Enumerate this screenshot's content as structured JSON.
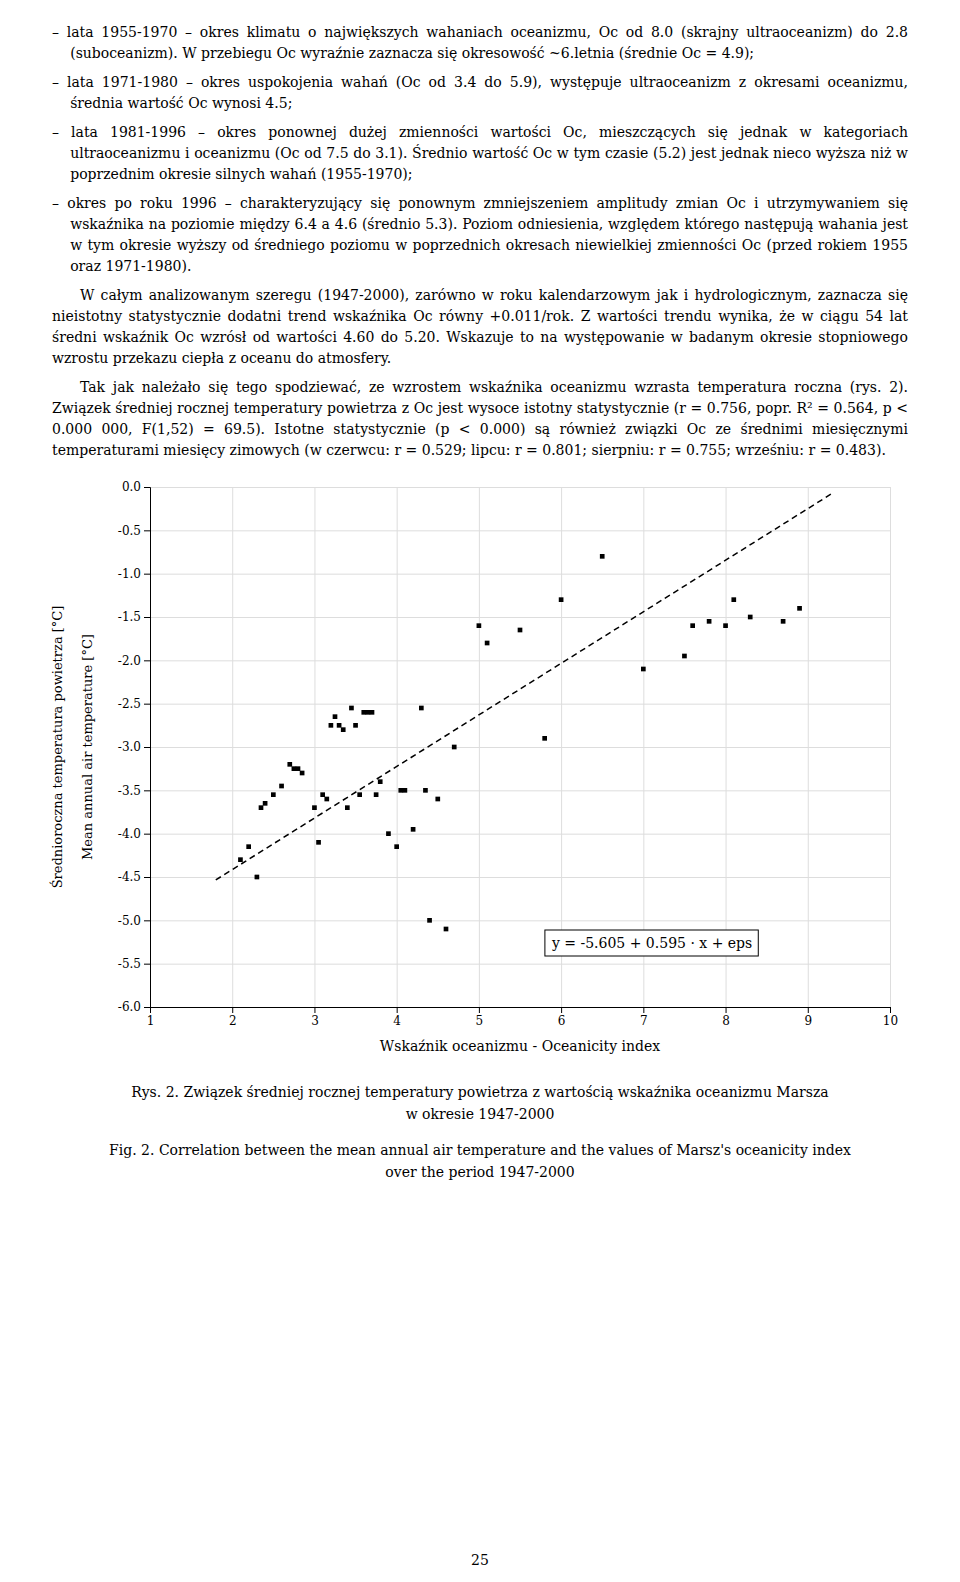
{
  "paragraphs": [
    "– lata 1955-1970 – okres klimatu o największych wahaniach oceanizmu, Oc od 8.0 (skrajny ultraoceanizm) do 2.8 (suboceanizm). W przebiegu Oc wyraźnie zaznacza się okresowość ~6.letnia (średnie Oc = 4.9);",
    "– lata 1971-1980 – okres uspokojenia wahań (Oc od 3.4 do 5.9), występuje ultraoceanizm z okresami oceanizmu, średnia wartość Oc wynosi 4.5;",
    "– lata 1981-1996 – okres ponownej dużej zmienności wartości Oc, mieszczących się jednak w kategoriach ultraoceanizmu i oceanizmu (Oc od 7.5 do 3.1). Średnio wartość Oc w tym czasie (5.2) jest jednak nieco wyższa niż w poprzednim okresie silnych wahań (1955-1970);",
    "– okres po roku 1996 – charakteryzujący się ponownym zmniejszeniem amplitudy zmian Oc i utrzymywaniem się wskaźnika na poziomie między 6.4 a 4.6 (średnio 5.3). Poziom odniesienia, względem którego następują wahania jest  w tym okresie wyższy od średniego poziomu w poprzednich okresach niewielkiej zmienności Oc (przed rokiem 1955 oraz 1971-1980).",
    "   W całym analizowanym szeregu (1947-2000), zarówno w roku kalendarzowym jak i hydrologicznym, zaznacza się nieistotny statystycznie dodatni trend wskaźnika Oc równy +0.011/rok. Z wartości trendu wynika, że w ciągu 54 lat średni wskaźnik Oc wzrósł od wartości 4.60 do 5.20. Wskazuje to na występowanie w badanym okresie stopniowego wzrostu przekazu ciepła z oceanu do atmosfery.",
    "   Tak jak należało się tego spodziewać, ze wzrostem wskaźnika oceanizmu wzrasta temperatura roczna (rys. 2). Związek średniej rocznej temperatury powietrza z Oc jest wysoce istotny statystycznie (r = 0.756, popr. R² = 0.564, p < 0.000 000, F(1,52) = 69.5). Istotne statystycznie (p < 0.000) są również związki Oc ze średnimi miesięcznymi temperaturami miesięcy zimowych (w czerwcu: r = 0.529; lipcu: r = 0.801; sierpniu: r = 0.755; wrześniu: r = 0.483)."
  ],
  "page_number": "25",
  "chart_data": {
    "type": "scatter",
    "caption": [
      "Rys. 2.  Związek średniej rocznej temperatury powietrza z wartością wskaźnika oceanizmu Marsza",
      "w okresie 1947-2000",
      "Fig. 2.  Correlation between the mean annual air temperature and the values of Marsz's oceanicity index",
      "over the period 1947-2000"
    ],
    "xlabel": "Wskaźnik oceanizmu - Oceanicity index",
    "ylabel": [
      "Średnioroczna temperatura powietrza [°C]",
      "Mean annual air temperature [°C]"
    ],
    "annotation": "y = -5.605 + 0.595 · x + eps",
    "series": [
      {
        "type": "scatter",
        "marker": "square",
        "color": "#000000",
        "x": [
          2.1,
          2.2,
          2.3,
          2.35,
          2.4,
          2.5,
          2.6,
          2.7,
          2.75,
          2.8,
          2.85,
          3.0,
          3.05,
          3.1,
          3.15,
          3.2,
          3.25,
          3.3,
          3.35,
          3.4,
          3.45,
          3.5,
          3.55,
          3.6,
          3.65,
          3.7,
          3.75,
          3.8,
          3.9,
          4.0,
          4.05,
          4.1,
          4.2,
          4.3,
          4.35,
          4.4,
          4.5,
          4.6,
          4.7,
          5.0,
          5.1,
          5.5,
          5.8,
          6.0,
          6.5,
          7.0,
          7.5,
          7.6,
          7.8,
          8.0,
          8.1,
          8.3,
          8.7,
          8.9
        ],
        "values": [
          -4.3,
          -4.15,
          -4.5,
          -3.7,
          -3.65,
          -3.55,
          -3.45,
          -3.2,
          -3.25,
          -3.25,
          -3.3,
          -3.7,
          -4.1,
          -3.55,
          -3.6,
          -2.75,
          -2.65,
          -2.75,
          -2.8,
          -3.7,
          -2.55,
          -2.75,
          -3.55,
          -2.6,
          -2.6,
          -2.6,
          -3.55,
          -3.4,
          -4.0,
          -4.15,
          -3.5,
          -3.5,
          -3.95,
          -2.55,
          -3.5,
          -5.0,
          -3.6,
          -5.1,
          -3.0,
          -1.6,
          -1.8,
          -1.65,
          -2.9,
          -1.3,
          -0.8,
          -2.1,
          -1.95,
          -1.6,
          -1.55,
          -1.6,
          -1.3,
          -1.5,
          -1.55,
          -1.4
        ]
      },
      {
        "type": "line",
        "line_style": "dashed",
        "color": "#000000",
        "x": [
          1.8,
          9.3
        ],
        "values": [
          -4.534,
          -0.0715
        ]
      }
    ],
    "xlim": [
      1,
      10
    ],
    "xticks": [
      1,
      2,
      3,
      4,
      5,
      6,
      7,
      8,
      9,
      10
    ],
    "ylim": [
      -6.0,
      0.0
    ],
    "yticks": [
      {
        "value": 0.0,
        "label": "0.0"
      },
      -0.5,
      {
        "value": -1.0,
        "label": "-1.0"
      },
      -1.5,
      {
        "value": -2.0,
        "label": "-2.0"
      },
      -2.5,
      {
        "value": -3.0,
        "label": "-3.0"
      },
      -3.5,
      {
        "value": -4.0,
        "label": "-4.0"
      },
      -4.5,
      {
        "value": -5.0,
        "label": "-5.0"
      },
      -5.5,
      {
        "value": -6.0,
        "label": "-6.0"
      }
    ],
    "grid": true
  }
}
